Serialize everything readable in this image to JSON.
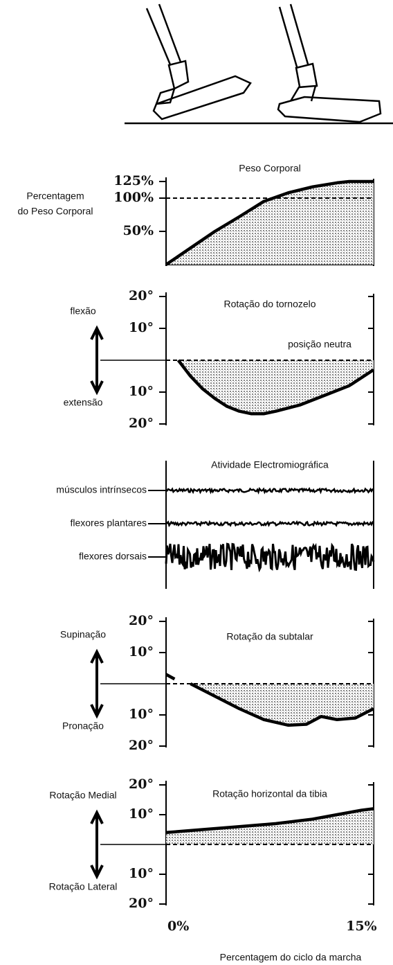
{
  "chart_data": [
    {
      "type": "area",
      "title": "Peso Corporal",
      "ylabel": [
        "Percentagem",
        "do Peso Corporal"
      ],
      "x": [
        -1,
        1,
        3,
        5,
        7,
        9,
        11,
        13,
        14,
        16
      ],
      "values": [
        0,
        25,
        50,
        72,
        95,
        108,
        117,
        123,
        125,
        125
      ],
      "xlim": [
        -1,
        16
      ],
      "ylim": [
        0,
        125
      ],
      "yticks": [
        {
          "value": 125,
          "label": "125%"
        },
        {
          "value": 100,
          "label": "100%"
        },
        {
          "value": 50,
          "label": "50%"
        }
      ],
      "reference": 100,
      "color": "#000",
      "fill": "#c4c4c4"
    },
    {
      "type": "area",
      "title": "Rotação do tornozelo",
      "labels": {
        "up": "flexão",
        "down": "extensão"
      },
      "x": [
        0,
        1,
        2,
        3,
        4,
        5,
        6,
        7,
        8,
        10,
        12,
        14,
        16
      ],
      "values": [
        0,
        -5,
        -9,
        -12,
        -14.5,
        -16,
        -16.8,
        -16.8,
        -16,
        -14,
        -11,
        -8,
        -3
      ],
      "xlim": [
        -1,
        16
      ],
      "ylim": [
        -20,
        20
      ],
      "yticks": [
        {
          "value": 20,
          "label": "20°"
        },
        {
          "value": 10,
          "label": "10°"
        },
        {
          "value": -10,
          "label": "10°"
        },
        {
          "value": -20,
          "label": "20°"
        }
      ],
      "reference": 0,
      "reference_label": "posição neutra",
      "color": "#000",
      "fill": "#c4c4c4"
    },
    {
      "type": "emg",
      "title": "Atividade Electromiográfica",
      "series": [
        {
          "name": "músculos intrínsecos"
        },
        {
          "name": "flexores plantares"
        },
        {
          "name": "flexores dorsais"
        }
      ],
      "color": "#000"
    },
    {
      "type": "area",
      "title": "Rotação da subtalar",
      "labels": {
        "up": "Supinação",
        "down": "Pronação"
      },
      "x": [
        -1,
        -0.3,
        0.3,
        1,
        3,
        5,
        7,
        9,
        10.5,
        11.7,
        13,
        14.5,
        16
      ],
      "values": [
        3,
        1.5,
        null,
        0,
        -4,
        -8,
        -11.5,
        -13.3,
        -13,
        -10.5,
        -11.5,
        -11,
        -8
      ],
      "xlim": [
        -1,
        16
      ],
      "ylim": [
        -20,
        20
      ],
      "yticks": [
        {
          "value": 20,
          "label": "20°"
        },
        {
          "value": 10,
          "label": "10°"
        },
        {
          "value": -10,
          "label": "10°"
        },
        {
          "value": -20,
          "label": "20°"
        }
      ],
      "reference": 0,
      "color": "#000",
      "fill": "#c4c4c4"
    },
    {
      "type": "area",
      "title": "Rotação horizontal da tibia",
      "labels": {
        "up": "Rotação Medial",
        "down": "Rotação Lateral"
      },
      "x": [
        -1,
        2,
        5,
        8,
        11,
        13,
        15,
        16
      ],
      "values": [
        4,
        5,
        6,
        7,
        8.5,
        10,
        11.5,
        12
      ],
      "xlim": [
        -1,
        16
      ],
      "ylim": [
        -20,
        20
      ],
      "yticks": [
        {
          "value": 20,
          "label": "20°"
        },
        {
          "value": 10,
          "label": "10°"
        },
        {
          "value": -10,
          "label": "10°"
        },
        {
          "value": -20,
          "label": "20°"
        }
      ],
      "xticks": [
        {
          "value": 0,
          "label": "0%"
        },
        {
          "value": 15,
          "label": "15%"
        }
      ],
      "xlabel": "Percentagem do ciclo da marcha",
      "reference": 0,
      "color": "#000",
      "fill": "#c4c4c4"
    }
  ]
}
